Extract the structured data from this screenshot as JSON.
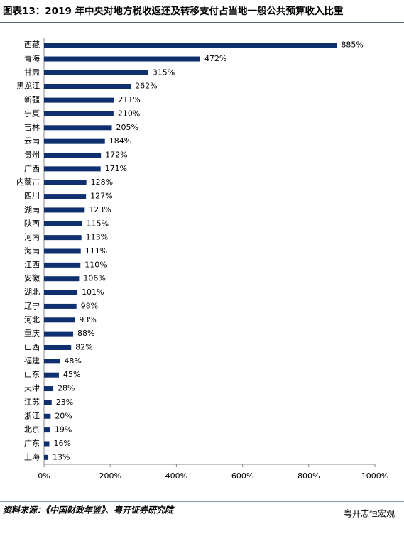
{
  "chart_data": {
    "type": "bar",
    "orientation": "horizontal",
    "title": "图表13：2019 年中央对地方税收返还及转移支付占当地一般公共预算收入比重",
    "categories": [
      "西藏",
      "青海",
      "甘肃",
      "黑龙江",
      "新疆",
      "宁夏",
      "吉林",
      "云南",
      "贵州",
      "广西",
      "内蒙古",
      "四川",
      "湖南",
      "陕西",
      "河南",
      "海南",
      "江西",
      "安徽",
      "湖北",
      "辽宁",
      "河北",
      "重庆",
      "山西",
      "福建",
      "山东",
      "天津",
      "江苏",
      "浙江",
      "北京",
      "广东",
      "上海"
    ],
    "values": [
      885,
      472,
      315,
      262,
      211,
      210,
      205,
      184,
      172,
      171,
      128,
      127,
      123,
      115,
      113,
      111,
      110,
      106,
      101,
      98,
      93,
      88,
      82,
      48,
      45,
      28,
      23,
      20,
      19,
      16,
      13
    ],
    "value_labels": [
      "885%",
      "472%",
      "315%",
      "262%",
      "211%",
      "210%",
      "205%",
      "184%",
      "172%",
      "171%",
      "128%",
      "127%",
      "123%",
      "115%",
      "113%",
      "111%",
      "110%",
      "106%",
      "101%",
      "98%",
      "93%",
      "88%",
      "82%",
      "48%",
      "45%",
      "28%",
      "23%",
      "20%",
      "19%",
      "16%",
      "13%"
    ],
    "color": "#0f2f6f",
    "xlim": [
      0,
      1000
    ],
    "xticks": [
      {
        "value": 0,
        "label": "0%"
      },
      {
        "value": 200,
        "label": "200%"
      },
      {
        "value": 400,
        "label": "400%"
      },
      {
        "value": 600,
        "label": "600%"
      },
      {
        "value": 800,
        "label": "800%"
      },
      {
        "value": 1000,
        "label": "1000%"
      }
    ],
    "source": "资料来源：《中国财政年鉴》、粤开证券研究院",
    "watermark": "粤开志恒宏观"
  }
}
